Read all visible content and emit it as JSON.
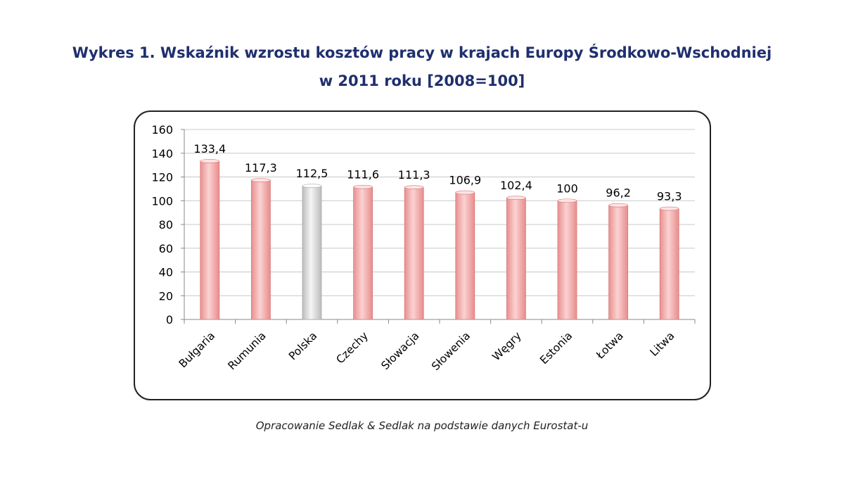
{
  "title_line1": "Wykres 1. Wskaźnik wzrostu kosztów pracy w krajach Europy Środkowo-Wschodniej",
  "title_line2": "w 2011 roku [2008=100]",
  "source": "Opracowanie Sedlak & Sedlak na podstawie danych Eurostat-u",
  "colors": {
    "bar": "#f4a6a6",
    "bar_highlight": "#d9d9d9",
    "gridline": "#c8c8c8",
    "title": "#1f2f6e"
  },
  "chart_data": {
    "type": "bar",
    "title": "Wykres 1. Wskaźnik wzrostu kosztów pracy w krajach Europy Środkowo-Wschodniej w 2011 roku [2008=100]",
    "categories": [
      "Bułgaria",
      "Rumunia",
      "Polska",
      "Czechy",
      "Słowacja",
      "Słowenia",
      "Węgry",
      "Estonia",
      "Łotwa",
      "Litwa"
    ],
    "values": [
      133.4,
      117.3,
      112.5,
      111.6,
      111.3,
      106.9,
      102.4,
      100,
      96.2,
      93.3
    ],
    "value_labels": [
      "133,4",
      "117,3",
      "112,5",
      "111,6",
      "111,3",
      "106,9",
      "102,4",
      "100",
      "96,2",
      "93,3"
    ],
    "highlight_category": "Polska",
    "ylim": [
      0,
      160
    ],
    "yticks": [
      "0",
      "20",
      "40",
      "60",
      "80",
      "100",
      "120",
      "140",
      "160"
    ],
    "grid": true,
    "xlabel": "",
    "ylabel": ""
  }
}
